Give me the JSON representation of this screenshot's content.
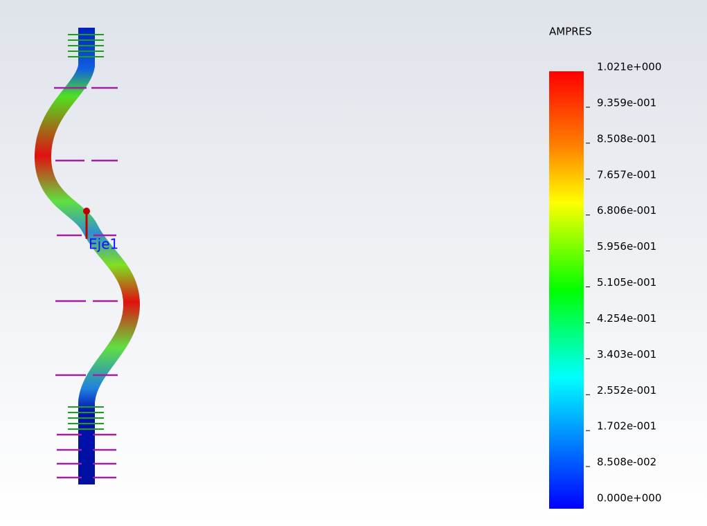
{
  "legend": {
    "title": "AMPRES",
    "labels": [
      "1.021e+000",
      "9.359e-001",
      "8.508e-001",
      "7.657e-001",
      "6.806e-001",
      "5.956e-001",
      "5.105e-001",
      "4.254e-001",
      "3.403e-001",
      "2.552e-001",
      "1.702e-001",
      "8.508e-002",
      "0.000e+000"
    ]
  },
  "model": {
    "axis_label": "Eje1"
  }
}
